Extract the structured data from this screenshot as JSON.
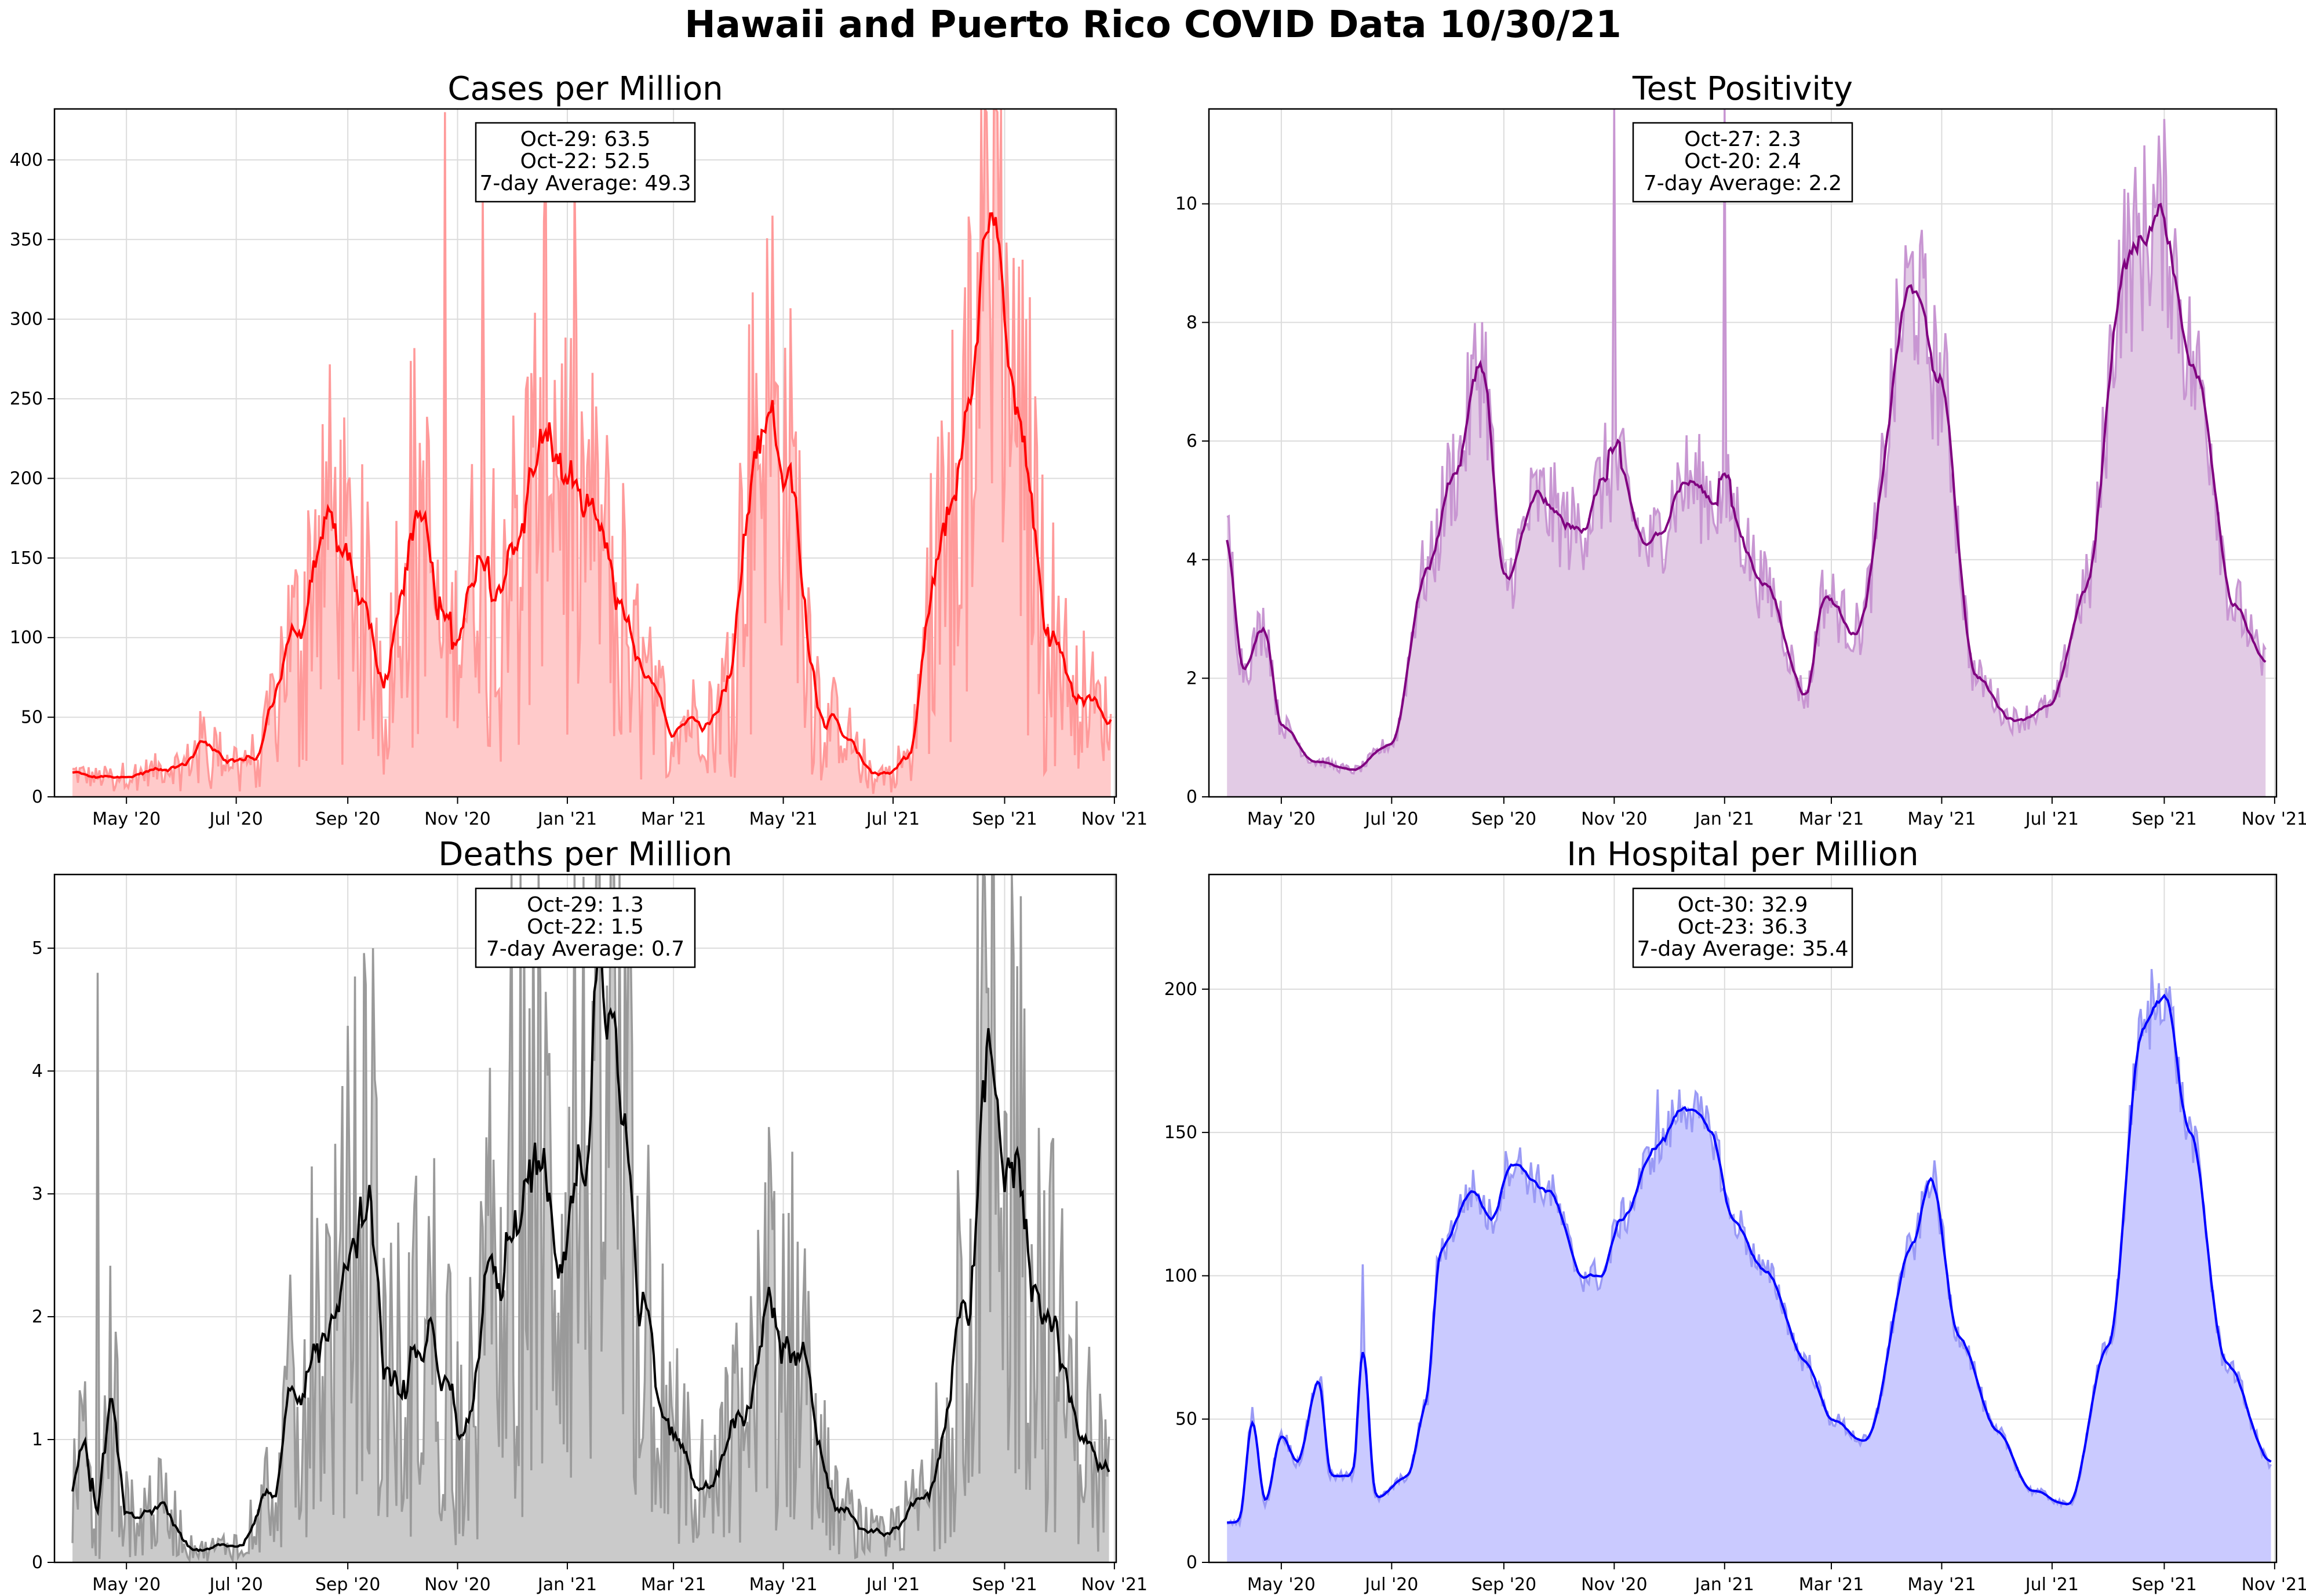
{
  "figure": {
    "title": "Hawaii and Puerto Rico COVID Data 10/30/21"
  },
  "chart_data": [
    {
      "type": "area",
      "id": "cases",
      "title": "Cases per Million",
      "xlabel": "",
      "ylabel": "",
      "x_start": "2020-04-01",
      "x_end": "2021-10-30",
      "xlim": [
        "2020-03-22",
        "2021-11-02"
      ],
      "ylim": [
        0,
        432
      ],
      "yticks": [
        0,
        50,
        100,
        150,
        200,
        250,
        300,
        350,
        400
      ],
      "xticks": [
        "2020-05-01",
        "2020-07-01",
        "2020-09-01",
        "2020-11-01",
        "2021-01-01",
        "2021-03-01",
        "2021-05-01",
        "2021-07-01",
        "2021-09-01",
        "2021-11-01"
      ],
      "xtick_labels": [
        "May '20",
        "Jul '20",
        "Sep '20",
        "Nov '20",
        "Jan '21",
        "Mar '21",
        "May '21",
        "Jul '21",
        "Sep '21",
        "Nov '21"
      ],
      "grid": true,
      "colors": {
        "line": "#ff0000",
        "raw": "#ff9a9a",
        "fill": "#ffcaca"
      },
      "series": [
        {
          "role": "7-day average",
          "keyframes": [
            [
              "2020-04-01",
              15
            ],
            [
              "2020-04-15",
              12
            ],
            [
              "2020-05-01",
              14
            ],
            [
              "2020-06-01",
              20
            ],
            [
              "2020-06-15",
              38
            ],
            [
              "2020-06-25",
              24
            ],
            [
              "2020-07-12",
              26
            ],
            [
              "2020-08-01",
              100
            ],
            [
              "2020-08-20",
              175
            ],
            [
              "2020-09-05",
              140
            ],
            [
              "2020-09-20",
              90
            ],
            [
              "2020-10-10",
              190
            ],
            [
              "2020-10-25",
              90
            ],
            [
              "2020-11-15",
              150
            ],
            [
              "2020-12-01",
              160
            ],
            [
              "2020-12-22",
              230
            ],
            [
              "2021-01-10",
              180
            ],
            [
              "2021-01-25",
              150
            ],
            [
              "2021-02-15",
              70
            ],
            [
              "2021-03-01",
              47
            ],
            [
              "2021-03-25",
              55
            ],
            [
              "2021-04-20",
              240
            ],
            [
              "2021-05-01",
              210
            ],
            [
              "2021-05-25",
              50
            ],
            [
              "2021-06-25",
              15
            ],
            [
              "2021-07-10",
              25
            ],
            [
              "2021-07-25",
              150
            ],
            [
              "2021-08-10",
              250
            ],
            [
              "2021-08-25",
              360
            ],
            [
              "2021-09-10",
              230
            ],
            [
              "2021-09-25",
              120
            ],
            [
              "2021-10-10",
              70
            ],
            [
              "2021-10-30",
              49
            ]
          ]
        },
        {
          "role": "daily",
          "noise": 0.6,
          "spikes": [
            [
              "2020-10-25",
              430
            ],
            [
              "2020-11-15",
              380
            ],
            [
              "2020-12-20",
              400
            ],
            [
              "2021-01-05",
              390
            ],
            [
              "2021-04-25",
              365
            ],
            [
              "2021-08-22",
              430
            ],
            [
              "2021-08-28",
              430
            ]
          ]
        }
      ],
      "annotation": [
        "Oct-29: 63.5",
        "Oct-22: 52.5",
        "7-day Average: 49.3"
      ]
    },
    {
      "type": "area",
      "id": "positivity",
      "title": "Test Positivity",
      "xlabel": "",
      "ylabel": "",
      "x_start": "2020-04-01",
      "x_end": "2021-10-27",
      "xlim": [
        "2020-03-22",
        "2021-11-02"
      ],
      "ylim": [
        0,
        11.6
      ],
      "yticks": [
        0,
        2,
        4,
        6,
        8,
        10
      ],
      "xticks": [
        "2020-05-01",
        "2020-07-01",
        "2020-09-01",
        "2020-11-01",
        "2021-01-01",
        "2021-03-01",
        "2021-05-01",
        "2021-07-01",
        "2021-09-01",
        "2021-11-01"
      ],
      "xtick_labels": [
        "May '20",
        "Jul '20",
        "Sep '20",
        "Nov '20",
        "Jan '21",
        "Mar '21",
        "May '21",
        "Jul '21",
        "Sep '21",
        "Nov '21"
      ],
      "grid": true,
      "colors": {
        "line": "#800080",
        "raw": "#c896d2",
        "fill": "#e2cbe5"
      },
      "series": [
        {
          "role": "7-day average",
          "keyframes": [
            [
              "2020-04-01",
              4.3
            ],
            [
              "2020-04-10",
              2.2
            ],
            [
              "2020-04-22",
              2.9
            ],
            [
              "2020-05-01",
              1.2
            ],
            [
              "2020-05-20",
              0.6
            ],
            [
              "2020-06-10",
              0.45
            ],
            [
              "2020-07-01",
              0.9
            ],
            [
              "2020-07-20",
              3.8
            ],
            [
              "2020-08-05",
              5.5
            ],
            [
              "2020-08-20",
              7.4
            ],
            [
              "2020-09-01",
              3.6
            ],
            [
              "2020-09-20",
              5.0
            ],
            [
              "2020-10-10",
              4.5
            ],
            [
              "2020-11-01",
              5.5
            ],
            [
              "2020-11-20",
              4.2
            ],
            [
              "2020-12-10",
              5.3
            ],
            [
              "2021-01-01",
              5.0
            ],
            [
              "2021-01-25",
              3.5
            ],
            [
              "2021-02-15",
              1.7
            ],
            [
              "2021-02-25",
              3.4
            ],
            [
              "2021-03-15",
              2.8
            ],
            [
              "2021-04-15",
              8.6
            ],
            [
              "2021-04-30",
              7.0
            ],
            [
              "2021-05-20",
              2.0
            ],
            [
              "2021-06-10",
              1.3
            ],
            [
              "2021-06-30",
              1.5
            ],
            [
              "2021-07-20",
              3.5
            ],
            [
              "2021-08-10",
              9.0
            ],
            [
              "2021-08-30",
              9.8
            ],
            [
              "2021-09-20",
              7.0
            ],
            [
              "2021-10-10",
              3.2
            ],
            [
              "2021-10-27",
              2.2
            ]
          ]
        },
        {
          "role": "daily",
          "noise": 0.18,
          "spikes": [
            [
              "2020-11-01",
              11.6
            ],
            [
              "2021-01-01",
              11.6
            ],
            [
              "2021-04-15",
              9.2
            ],
            [
              "2021-08-30",
              10.4
            ]
          ]
        }
      ],
      "annotation": [
        "Oct-27: 2.3",
        "Oct-20: 2.4",
        "7-day Average: 2.2"
      ]
    },
    {
      "type": "area",
      "id": "deaths",
      "title": "Deaths per Million",
      "xlabel": "",
      "ylabel": "",
      "x_start": "2020-04-01",
      "x_end": "2021-10-29",
      "xlim": [
        "2020-03-22",
        "2021-11-02"
      ],
      "ylim": [
        0,
        5.6
      ],
      "yticks": [
        0,
        1,
        2,
        3,
        4,
        5
      ],
      "xticks": [
        "2020-05-01",
        "2020-07-01",
        "2020-09-01",
        "2020-11-01",
        "2021-01-01",
        "2021-03-01",
        "2021-05-01",
        "2021-07-01",
        "2021-09-01",
        "2021-11-01"
      ],
      "xtick_labels": [
        "May '20",
        "Jul '20",
        "Sep '20",
        "Nov '20",
        "Jan '21",
        "Mar '21",
        "May '21",
        "Jul '21",
        "Sep '21",
        "Nov '21"
      ],
      "grid": true,
      "colors": {
        "line": "#000000",
        "raw": "#9a9a9a",
        "fill": "#cacaca"
      },
      "series": [
        {
          "role": "7-day average",
          "keyframes": [
            [
              "2020-04-01",
              0.6
            ],
            [
              "2020-04-08",
              0.9
            ],
            [
              "2020-04-15",
              0.0
            ],
            [
              "2020-04-22",
              1.4
            ],
            [
              "2020-05-01",
              0.4
            ],
            [
              "2020-05-20",
              0.45
            ],
            [
              "2020-06-10",
              0.1
            ],
            [
              "2020-07-01",
              0.15
            ],
            [
              "2020-07-20",
              0.6
            ],
            [
              "2020-08-10",
              1.8
            ],
            [
              "2020-08-25",
              1.9
            ],
            [
              "2020-09-10",
              3.0
            ],
            [
              "2020-09-25",
              1.5
            ],
            [
              "2020-10-20",
              1.9
            ],
            [
              "2020-11-05",
              1.2
            ],
            [
              "2020-11-25",
              2.5
            ],
            [
              "2020-12-10",
              3.3
            ],
            [
              "2020-12-25",
              2.8
            ],
            [
              "2021-01-10",
              3.2
            ],
            [
              "2021-01-20",
              4.7
            ],
            [
              "2021-02-10",
              2.5
            ],
            [
              "2021-03-01",
              1.0
            ],
            [
              "2021-03-20",
              0.6
            ],
            [
              "2021-04-10",
              1.2
            ],
            [
              "2021-04-25",
              2.0
            ],
            [
              "2021-05-10",
              1.8
            ],
            [
              "2021-06-01",
              0.4
            ],
            [
              "2021-06-25",
              0.2
            ],
            [
              "2021-07-20",
              0.5
            ],
            [
              "2021-08-10",
              2.5
            ],
            [
              "2021-08-25",
              3.8
            ],
            [
              "2021-09-10",
              3.2
            ],
            [
              "2021-09-25",
              2.0
            ],
            [
              "2021-10-10",
              1.2
            ],
            [
              "2021-10-29",
              0.7
            ]
          ]
        },
        {
          "role": "daily",
          "noise": 0.9,
          "spikes": [
            [
              "2020-04-15",
              4.8
            ],
            [
              "2020-09-15",
              5.0
            ],
            [
              "2020-12-01",
              5.6
            ],
            [
              "2021-01-05",
              5.6
            ],
            [
              "2021-01-25",
              5.6
            ],
            [
              "2021-08-20",
              5.6
            ],
            [
              "2021-09-05",
              5.6
            ]
          ]
        }
      ],
      "annotation": [
        "Oct-29: 1.3",
        "Oct-22: 1.5",
        "7-day Average: 0.7"
      ]
    },
    {
      "type": "area",
      "id": "hospital",
      "title": "In Hospital per Million",
      "xlabel": "",
      "ylabel": "",
      "x_start": "2020-04-01",
      "x_end": "2021-10-30",
      "xlim": [
        "2020-03-22",
        "2021-11-02"
      ],
      "ylim": [
        0,
        240
      ],
      "yticks": [
        0,
        50,
        100,
        150,
        200
      ],
      "xticks": [
        "2020-05-01",
        "2020-07-01",
        "2020-09-01",
        "2020-11-01",
        "2021-01-01",
        "2021-03-01",
        "2021-05-01",
        "2021-07-01",
        "2021-09-01",
        "2021-11-01"
      ],
      "xtick_labels": [
        "May '20",
        "Jul '20",
        "Sep '20",
        "Nov '20",
        "Jan '21",
        "Mar '21",
        "May '21",
        "Jul '21",
        "Sep '21",
        "Nov '21"
      ],
      "grid": true,
      "colors": {
        "line": "#0000ff",
        "raw": "#9a9af5",
        "fill": "#cacaff"
      },
      "series": [
        {
          "role": "7-day average",
          "keyframes": [
            [
              "2020-04-01",
              14
            ],
            [
              "2020-04-08",
              14
            ],
            [
              "2020-04-15",
              52
            ],
            [
              "2020-04-22",
              20
            ],
            [
              "2020-05-01",
              45
            ],
            [
              "2020-05-10",
              35
            ],
            [
              "2020-05-22",
              65
            ],
            [
              "2020-05-28",
              30
            ],
            [
              "2020-06-10",
              30
            ],
            [
              "2020-06-15",
              78
            ],
            [
              "2020-06-22",
              22
            ],
            [
              "2020-07-10",
              30
            ],
            [
              "2020-07-20",
              55
            ],
            [
              "2020-07-28",
              110
            ],
            [
              "2020-08-15",
              130
            ],
            [
              "2020-08-25",
              120
            ],
            [
              "2020-09-05",
              140
            ],
            [
              "2020-09-25",
              130
            ],
            [
              "2020-10-15",
              100
            ],
            [
              "2020-10-25",
              100
            ],
            [
              "2020-11-05",
              120
            ],
            [
              "2020-11-25",
              145
            ],
            [
              "2020-12-10",
              160
            ],
            [
              "2020-12-25",
              150
            ],
            [
              "2021-01-05",
              120
            ],
            [
              "2021-01-25",
              100
            ],
            [
              "2021-02-15",
              70
            ],
            [
              "2021-03-01",
              50
            ],
            [
              "2021-03-20",
              42
            ],
            [
              "2021-04-15",
              110
            ],
            [
              "2021-04-25",
              135
            ],
            [
              "2021-05-10",
              80
            ],
            [
              "2021-06-01",
              45
            ],
            [
              "2021-06-20",
              25
            ],
            [
              "2021-07-10",
              20
            ],
            [
              "2021-08-01",
              75
            ],
            [
              "2021-08-20",
              185
            ],
            [
              "2021-09-01",
              200
            ],
            [
              "2021-09-15",
              150
            ],
            [
              "2021-10-05",
              70
            ],
            [
              "2021-10-30",
              35
            ]
          ]
        },
        {
          "role": "daily",
          "noise": 0.06,
          "spikes": [
            [
              "2020-06-15",
              104
            ],
            [
              "2020-11-25",
              165
            ],
            [
              "2021-08-25",
              207
            ]
          ]
        }
      ],
      "annotation": [
        "Oct-30: 32.9",
        "Oct-23: 36.3",
        "7-day Average: 35.4"
      ]
    }
  ]
}
